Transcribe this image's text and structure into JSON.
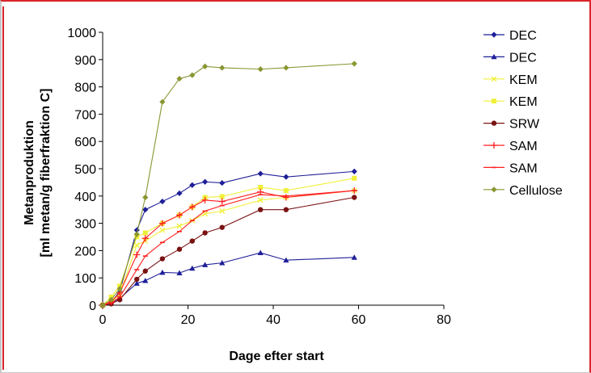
{
  "chart_data": {
    "type": "line",
    "xlabel": "Dage efter start",
    "ylabel_lines": [
      "Metanproduktion",
      "[ml metan/g fiberfraktion C]"
    ],
    "xlim": [
      0,
      80
    ],
    "ylim": [
      0,
      1000
    ],
    "x_ticks": [
      0,
      20,
      40,
      60,
      80
    ],
    "y_ticks": [
      0,
      100,
      200,
      300,
      400,
      500,
      600,
      700,
      800,
      900,
      1000
    ],
    "grid": false,
    "legend_position": "right",
    "series": [
      {
        "name": "DEC",
        "color": "#1f1f99",
        "marker": "diamond",
        "x": [
          0,
          2,
          4,
          8,
          10,
          14,
          18,
          21,
          24,
          28,
          37,
          43,
          59
        ],
        "y": [
          0,
          10,
          50,
          275,
          350,
          380,
          410,
          440,
          452,
          448,
          482,
          470,
          490
        ]
      },
      {
        "name": "DEC",
        "color": "#1f1f99",
        "marker": "triangle",
        "x": [
          0,
          2,
          4,
          8,
          10,
          14,
          18,
          21,
          24,
          28,
          37,
          43,
          59
        ],
        "y": [
          0,
          8,
          25,
          80,
          90,
          120,
          118,
          135,
          148,
          155,
          192,
          165,
          175
        ]
      },
      {
        "name": "KEM",
        "color": "#f0f03a",
        "marker": "cross",
        "x": [
          0,
          2,
          4,
          8,
          10,
          14,
          18,
          21,
          24,
          28,
          37,
          43,
          59
        ],
        "y": [
          0,
          10,
          40,
          220,
          235,
          275,
          290,
          310,
          335,
          345,
          385,
          395,
          420
        ]
      },
      {
        "name": "KEM",
        "color": "#f0f03a",
        "marker": "square",
        "x": [
          0,
          2,
          4,
          8,
          10,
          14,
          18,
          21,
          24,
          28,
          37,
          43,
          59
        ],
        "y": [
          0,
          30,
          70,
          250,
          265,
          300,
          330,
          360,
          395,
          398,
          432,
          420,
          465
        ]
      },
      {
        "name": "SRW",
        "color": "#7a1212",
        "marker": "circle",
        "x": [
          0,
          2,
          4,
          8,
          10,
          14,
          18,
          21,
          24,
          28,
          37,
          43,
          59
        ],
        "y": [
          0,
          5,
          20,
          95,
          125,
          170,
          205,
          235,
          265,
          285,
          350,
          350,
          395
        ]
      },
      {
        "name": "SAM",
        "color": "#ff2020",
        "marker": "plus",
        "x": [
          0,
          2,
          4,
          8,
          10,
          14,
          18,
          21,
          24,
          28,
          37,
          43,
          59
        ],
        "y": [
          0,
          12,
          45,
          185,
          245,
          300,
          330,
          360,
          385,
          380,
          415,
          395,
          420
        ]
      },
      {
        "name": "SAM",
        "color": "#ff2020",
        "marker": "dash",
        "x": [
          0,
          2,
          4,
          8,
          10,
          14,
          18,
          21,
          24,
          28,
          37,
          43,
          59
        ],
        "y": [
          0,
          8,
          30,
          130,
          180,
          230,
          270,
          310,
          345,
          365,
          405,
          400,
          420
        ]
      },
      {
        "name": "Cellulose",
        "color": "#8a9632",
        "marker": "diamond",
        "x": [
          0,
          2,
          4,
          8,
          10,
          14,
          18,
          21,
          24,
          28,
          37,
          43,
          59
        ],
        "y": [
          0,
          20,
          60,
          260,
          395,
          745,
          830,
          843,
          875,
          870,
          865,
          870,
          885
        ]
      }
    ]
  }
}
